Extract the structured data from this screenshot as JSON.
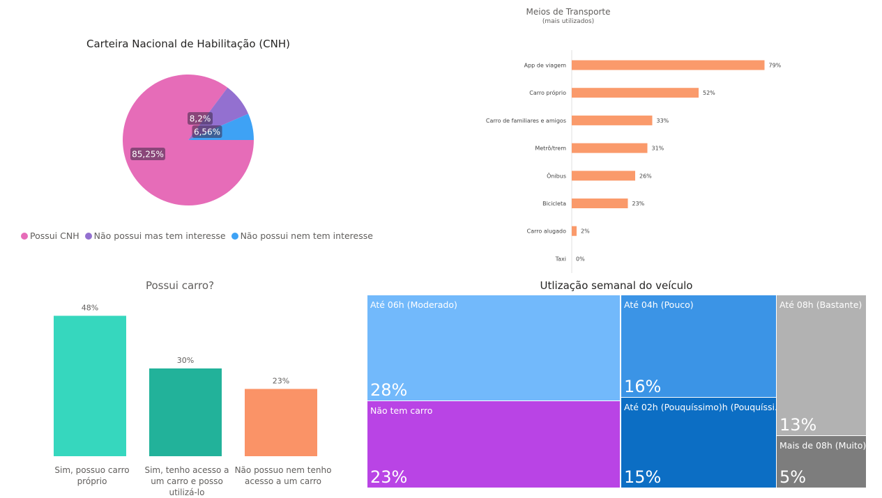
{
  "colors": {
    "cnh_yes": "#E66CB8",
    "cnh_interest": "#9370D0",
    "cnh_no_interest": "#3EA2F5",
    "transport_bar": "#FA9A6B",
    "car_yes": "#36D7BE",
    "car_access": "#22B29A",
    "car_no": "#FA9367"
  },
  "chart_data": [
    {
      "type": "pie",
      "title": "Carteira Nacional de Habilitação (CNH)",
      "series": [
        {
          "name": "Possui CNH",
          "value": 85.25,
          "label": "85,25%",
          "color": "#E66CB8"
        },
        {
          "name": "Não possui mas tem interesse",
          "value": 8.2,
          "label": "8,2%",
          "color": "#9370D0"
        },
        {
          "name": "Não possui nem tem interesse",
          "value": 6.56,
          "label": "6,56%",
          "color": "#3EA2F5"
        }
      ],
      "legend": "bottom"
    },
    {
      "type": "bar",
      "orientation": "horizontal",
      "title": "Meios de Transporte",
      "subtitle": "(mais utilizados)",
      "categories": [
        "App de viagem",
        "Carro próprio",
        "Carro de familiares e amigos",
        "Metrô/trem",
        "Ônibus",
        "Bicicleta",
        "Carro alugado",
        "Taxi"
      ],
      "values": [
        79,
        52,
        33,
        31,
        26,
        23,
        2,
        0
      ],
      "labels": [
        "79%",
        "52%",
        "33%",
        "31%",
        "26%",
        "23%",
        "2%",
        "0%"
      ],
      "xlim": [
        0,
        100
      ]
    },
    {
      "type": "bar",
      "title": "Possui carro?",
      "categories": [
        "Sim, possuo carro próprio",
        "Sim, tenho acesso a um carro e posso utilizá-lo",
        "Não possuo nem tenho acesso a um carro"
      ],
      "values": [
        48,
        30,
        23
      ],
      "labels": [
        "48%",
        "30%",
        "23%"
      ],
      "ylim": [
        0,
        50
      ]
    },
    {
      "type": "treemap",
      "title": "Utlização semanal do veículo",
      "items": [
        {
          "name": "Até 06h (Moderado)",
          "value": 28,
          "label": "28%",
          "color": "#72B9FB"
        },
        {
          "name": "Não tem carro",
          "value": 23,
          "label": "23%",
          "color": "#B944E5"
        },
        {
          "name": "Até 04h (Pouco)",
          "value": 16,
          "label": "16%",
          "color": "#3B94E6"
        },
        {
          "name": "Até 02h (Pouquíssimo)h (Pouquíssi...",
          "value": 15,
          "label": "15%",
          "color": "#0C6EC4"
        },
        {
          "name": "Até 08h (Bastante)",
          "value": 13,
          "label": "13%",
          "color": "#B2B2B2"
        },
        {
          "name": "Mais de 08h (Muito)",
          "value": 5,
          "label": "5%",
          "color": "#7D7D7D"
        }
      ]
    }
  ]
}
